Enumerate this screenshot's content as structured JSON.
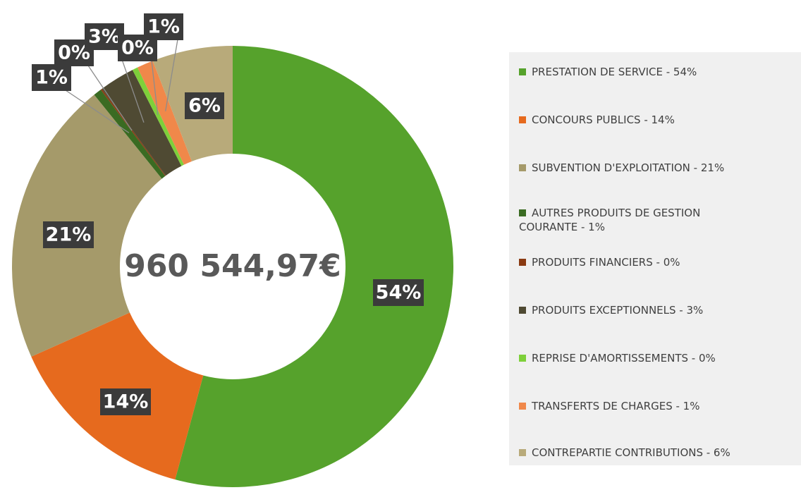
{
  "chart_data": {
    "type": "donut",
    "center_label": "960 544,97€",
    "categories": [
      "PRESTATION DE SERVICE - 54%",
      "CONCOURS PUBLICS - 14%",
      "SUBVENTION D'EXPLOITATION - 21%",
      "AUTRES PRODUITS DE GESTION COURANTE - 1%",
      "PRODUITS FINANCIERS - 0%",
      "PRODUITS EXCEPTIONNELS - 3%",
      "REPRISE D'AMORTISSEMENTS - 0%",
      "TRANSFERTS DE CHARGES - 1%",
      "CONTREPARTIE CONTRIBUTIONS - 6%"
    ],
    "values": [
      54.2,
      14.1,
      20.9,
      0.6,
      0.1,
      2.6,
      0.4,
      1.2,
      5.9
    ],
    "value_labels": [
      "54%",
      "14%",
      "21%",
      "1%",
      "0%",
      "3%",
      "0%",
      "1%",
      "6%"
    ],
    "colors": [
      "#56a22c",
      "#e66a1e",
      "#a59a6a",
      "#3a6b22",
      "#8a3a12",
      "#4f4a33",
      "#7ed03a",
      "#f0884a",
      "#b8aa7a"
    ],
    "legend": "right"
  }
}
